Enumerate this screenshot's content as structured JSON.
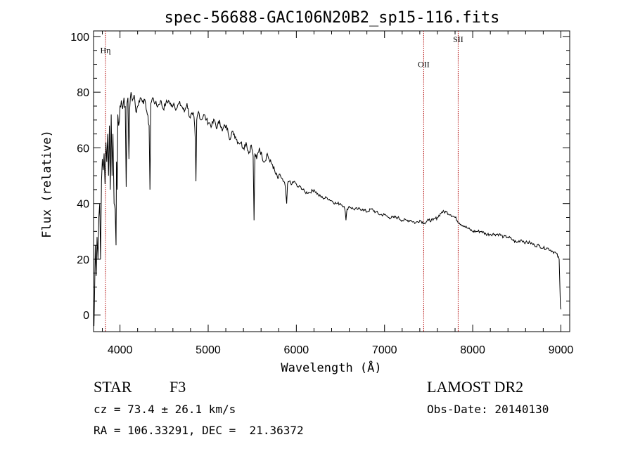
{
  "chart_data": {
    "type": "line",
    "title": "spec-56688-GAC106N20B2_sp15-116.fits",
    "xlabel": "Wavelength (Å)",
    "ylabel": "Flux (relative)",
    "xlim": [
      3700,
      9100
    ],
    "ylim": [
      -6,
      102
    ],
    "xticks": [
      4000,
      5000,
      6000,
      7000,
      8000,
      9000
    ],
    "yticks": [
      0,
      20,
      40,
      60,
      80,
      100
    ],
    "grid": false,
    "line_color": "#000000",
    "lines": [
      {
        "label": "Hη",
        "wavelength": 3835,
        "label_flux": 94
      },
      {
        "label": "OII",
        "wavelength": 7444,
        "label_flux": 89
      },
      {
        "label": "SII",
        "wavelength": 7835,
        "label_flux": 98
      }
    ],
    "line_marker_color": "#b00000",
    "series": [
      {
        "x": [
          3705,
          3712,
          3720,
          3730,
          3740,
          3750,
          3760,
          3770,
          3780,
          3790,
          3800,
          3810,
          3820,
          3830,
          3840,
          3850,
          3860,
          3870,
          3880,
          3890,
          3900,
          3910,
          3920,
          3933,
          3945,
          3955,
          3960,
          3968,
          3975,
          3985,
          4000,
          4015,
          4030,
          4045,
          4060,
          4070,
          4080,
          4090,
          4101,
          4110,
          4125,
          4140,
          4160,
          4180,
          4200,
          4230,
          4260,
          4290,
          4310,
          4330,
          4340,
          4350,
          4370,
          4400,
          4430,
          4460,
          4490,
          4520,
          4550,
          4580,
          4610,
          4640,
          4670,
          4700,
          4730,
          4760,
          4790,
          4820,
          4840,
          4855,
          4861,
          4870,
          4890,
          4920,
          4950,
          4980,
          5010,
          5040,
          5070,
          5100,
          5130,
          5160,
          5190,
          5220,
          5250,
          5280,
          5310,
          5340,
          5370,
          5400,
          5430,
          5460,
          5490,
          5510,
          5520,
          5530,
          5550,
          5580,
          5610,
          5640,
          5670,
          5700,
          5730,
          5760,
          5790,
          5820,
          5850,
          5875,
          5890,
          5900,
          5920,
          5950,
          5980,
          6010,
          6050,
          6100,
          6150,
          6200,
          6250,
          6300,
          6350,
          6400,
          6450,
          6500,
          6540,
          6555,
          6563,
          6575,
          6600,
          6650,
          6700,
          6750,
          6800,
          6850,
          6900,
          6950,
          7000,
          7050,
          7100,
          7150,
          7200,
          7250,
          7300,
          7350,
          7400,
          7450,
          7500,
          7550,
          7600,
          7650,
          7700,
          7750,
          7800,
          7850,
          7900,
          7950,
          8000,
          8050,
          8100,
          8150,
          8200,
          8250,
          8300,
          8350,
          8400,
          8450,
          8500,
          8550,
          8600,
          8650,
          8700,
          8750,
          8800,
          8850,
          8900,
          8950,
          8980,
          8995,
          9000
        ],
        "values": [
          -4,
          8,
          25,
          14,
          28,
          20,
          35,
          40,
          20,
          48,
          56,
          52,
          58,
          47,
          62,
          55,
          65,
          50,
          68,
          45,
          72,
          50,
          65,
          40,
          38,
          25,
          55,
          45,
          72,
          68,
          75,
          77,
          74,
          78,
          75,
          46,
          76,
          78,
          56,
          74,
          80,
          77,
          79,
          73,
          75,
          78,
          77,
          76,
          72,
          68,
          45,
          76,
          78,
          76,
          75,
          77,
          74,
          76,
          77,
          75,
          76,
          74,
          76,
          75,
          73,
          76,
          71,
          72,
          71,
          62,
          48,
          70,
          73,
          70,
          72,
          70,
          69,
          68,
          70,
          67,
          70,
          66,
          68,
          67,
          63,
          66,
          64,
          62,
          62,
          60,
          62,
          58,
          61,
          57,
          34,
          58,
          56,
          60,
          57,
          55,
          58,
          55,
          54,
          51,
          49,
          50,
          48,
          46,
          40,
          47,
          48,
          47,
          48,
          46,
          46,
          44,
          44,
          45,
          43,
          42,
          42,
          41,
          40,
          40,
          39,
          37,
          34,
          38,
          39,
          38,
          38,
          38,
          37,
          38,
          37,
          36,
          36,
          35,
          35,
          35,
          34,
          34,
          34,
          33,
          34,
          33,
          34,
          34,
          35,
          37,
          37,
          36,
          35,
          33,
          32,
          31,
          30,
          30,
          30,
          29,
          29,
          29,
          29,
          28,
          28,
          27,
          26,
          27,
          26,
          26,
          25,
          25,
          24,
          24,
          23,
          22,
          20,
          3,
          2
        ]
      }
    ]
  },
  "info": {
    "object_class": "STAR",
    "subclass": "F3",
    "survey": "LAMOST DR2",
    "cz": "cz = 73.4 ± 26.1 km/s",
    "obs_date": "Obs-Date: 20140130",
    "coords": "RA = 106.33291, DEC =  21.36372"
  }
}
